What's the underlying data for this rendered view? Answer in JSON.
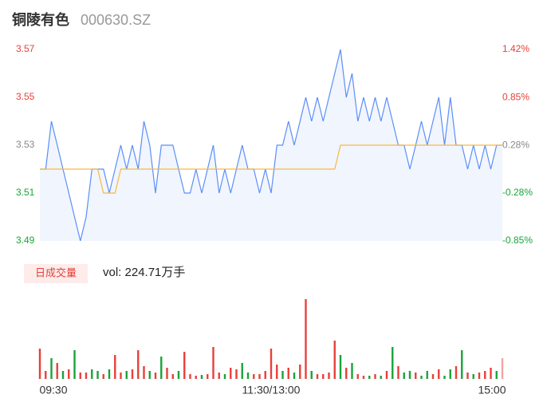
{
  "header": {
    "title": "铜陵有色",
    "code": "000630.SZ"
  },
  "chart_data": [
    {
      "type": "line",
      "x": [
        0,
        3,
        6,
        9,
        12,
        15,
        18,
        21,
        24,
        27,
        30,
        33,
        36,
        39,
        42,
        45,
        48,
        51,
        54,
        57,
        60,
        63,
        66,
        69,
        72,
        75,
        78,
        81,
        84,
        87,
        90,
        93,
        96,
        99,
        102,
        105,
        108,
        111,
        114,
        117,
        120,
        123,
        126,
        129,
        132,
        135,
        138,
        141,
        144,
        147,
        150,
        153,
        156,
        159,
        162,
        165,
        168,
        171,
        174,
        177,
        180,
        183,
        186,
        189,
        192,
        195,
        198,
        201,
        204,
        207,
        210,
        213,
        216,
        219,
        222,
        225,
        228,
        231,
        234,
        237,
        240
      ],
      "xlim": [
        0,
        240
      ],
      "ylim": [
        3.49,
        3.57
      ],
      "yticks": [
        3.49,
        3.51,
        3.53,
        3.55,
        3.57
      ],
      "ytick_colors": [
        "#1aa33a",
        "#1aa33a",
        "#888888",
        "#e8403a",
        "#e8403a"
      ],
      "y2lim": [
        -0.85,
        1.42
      ],
      "y2ticks": [
        {
          "value": -0.85,
          "label": "-0.85%"
        },
        {
          "value": -0.28,
          "label": "-0.28%"
        },
        {
          "value": 0.28,
          "label": "0.28%"
        },
        {
          "value": 0.85,
          "label": "0.85%"
        },
        {
          "value": 1.42,
          "label": "1.42%"
        }
      ],
      "y2tick_colors": [
        "#1aa33a",
        "#1aa33a",
        "#888888",
        "#e8403a",
        "#e8403a"
      ],
      "series": [
        {
          "color": "#5b8ff9",
          "fill": "#f1f5fd",
          "values": [
            3.52,
            3.52,
            3.54,
            3.53,
            3.52,
            3.51,
            3.5,
            3.49,
            3.5,
            3.52,
            3.52,
            3.52,
            3.51,
            3.52,
            3.53,
            3.52,
            3.53,
            3.52,
            3.54,
            3.53,
            3.51,
            3.53,
            3.53,
            3.53,
            3.52,
            3.51,
            3.51,
            3.52,
            3.51,
            3.52,
            3.53,
            3.51,
            3.52,
            3.51,
            3.52,
            3.53,
            3.52,
            3.52,
            3.51,
            3.52,
            3.51,
            3.53,
            3.53,
            3.54,
            3.53,
            3.54,
            3.55,
            3.54,
            3.55,
            3.54,
            3.55,
            3.56,
            3.57,
            3.55,
            3.56,
            3.54,
            3.55,
            3.54,
            3.55,
            3.54,
            3.55,
            3.54,
            3.53,
            3.53,
            3.52,
            3.53,
            3.54,
            3.53,
            3.54,
            3.55,
            3.53,
            3.55,
            3.53,
            3.53,
            3.52,
            3.53,
            3.52,
            3.53,
            3.52,
            3.53,
            3.53
          ]
        },
        {
          "color": "#f5b942",
          "values": [
            3.52,
            3.52,
            3.52,
            3.52,
            3.52,
            3.52,
            3.52,
            3.52,
            3.52,
            3.52,
            3.52,
            3.51,
            3.51,
            3.51,
            3.52,
            3.52,
            3.52,
            3.52,
            3.52,
            3.52,
            3.52,
            3.52,
            3.52,
            3.52,
            3.52,
            3.52,
            3.52,
            3.52,
            3.52,
            3.52,
            3.52,
            3.52,
            3.52,
            3.52,
            3.52,
            3.52,
            3.52,
            3.52,
            3.52,
            3.52,
            3.52,
            3.52,
            3.52,
            3.52,
            3.52,
            3.52,
            3.52,
            3.52,
            3.52,
            3.52,
            3.52,
            3.52,
            3.53,
            3.53,
            3.53,
            3.53,
            3.53,
            3.53,
            3.53,
            3.53,
            3.53,
            3.53,
            3.53,
            3.53,
            3.53,
            3.53,
            3.53,
            3.53,
            3.53,
            3.53,
            3.53,
            3.53,
            3.53,
            3.53,
            3.53,
            3.53,
            3.53,
            3.53,
            3.53,
            3.53,
            3.53
          ]
        }
      ]
    },
    {
      "type": "bar",
      "title": "日成交量",
      "subtitle": "vol: 224.71万手",
      "x": [
        0,
        3,
        6,
        9,
        12,
        15,
        18,
        21,
        24,
        27,
        30,
        33,
        36,
        39,
        42,
        45,
        48,
        51,
        54,
        57,
        60,
        63,
        66,
        69,
        72,
        75,
        78,
        81,
        84,
        87,
        90,
        93,
        96,
        99,
        102,
        105,
        108,
        111,
        114,
        117,
        120,
        123,
        126,
        129,
        132,
        135,
        138,
        141,
        144,
        147,
        150,
        153,
        156,
        159,
        162,
        165,
        168,
        171,
        174,
        177,
        180,
        183,
        186,
        189,
        192,
        195,
        198,
        201,
        204,
        207,
        210,
        213,
        216,
        219,
        222,
        225,
        228,
        231,
        234,
        237,
        240
      ],
      "xlim": [
        0,
        240
      ],
      "xticks": [
        {
          "value": 0,
          "label": "09:30"
        },
        {
          "value": 120,
          "label": "11:30/13:00"
        },
        {
          "value": 240,
          "label": "15:00"
        }
      ],
      "ylim": [
        0,
        105
      ],
      "values": [
        38,
        10,
        26,
        20,
        10,
        12,
        36,
        8,
        8,
        12,
        10,
        6,
        12,
        30,
        8,
        10,
        12,
        36,
        16,
        10,
        8,
        28,
        14,
        6,
        10,
        34,
        6,
        4,
        5,
        6,
        40,
        8,
        6,
        14,
        12,
        20,
        8,
        6,
        6,
        10,
        38,
        18,
        10,
        14,
        8,
        18,
        100,
        10,
        6,
        6,
        8,
        48,
        30,
        14,
        20,
        6,
        4,
        4,
        6,
        4,
        10,
        40,
        16,
        8,
        10,
        8,
        4,
        10,
        6,
        12,
        4,
        12,
        16,
        36,
        8,
        6,
        8,
        10,
        14,
        10,
        26
      ],
      "colors": [
        "#e8403a",
        "#e8403a",
        "#1aa33a",
        "#e8403a",
        "#1aa33a",
        "#e8403a",
        "#1aa33a",
        "#e8403a",
        "#e8403a",
        "#1aa33a",
        "#1aa33a",
        "#e8403a",
        "#1aa33a",
        "#e8403a",
        "#e8403a",
        "#1aa33a",
        "#e8403a",
        "#e8403a",
        "#e8403a",
        "#1aa33a",
        "#e8403a",
        "#1aa33a",
        "#e8403a",
        "#e8403a",
        "#1aa33a",
        "#e8403a",
        "#e8403a",
        "#e8403a",
        "#1aa33a",
        "#e8403a",
        "#e8403a",
        "#e8403a",
        "#1aa33a",
        "#e8403a",
        "#e8403a",
        "#1aa33a",
        "#1aa33a",
        "#e8403a",
        "#e8403a",
        "#e8403a",
        "#e8403a",
        "#e8403a",
        "#1aa33a",
        "#e8403a",
        "#1aa33a",
        "#e8403a",
        "#e8403a",
        "#1aa33a",
        "#e8403a",
        "#e8403a",
        "#e8403a",
        "#e8403a",
        "#1aa33a",
        "#e8403a",
        "#1aa33a",
        "#e8403a",
        "#e8403a",
        "#1aa33a",
        "#e8403a",
        "#1aa33a",
        "#e8403a",
        "#1aa33a",
        "#e8403a",
        "#1aa33a",
        "#1aa33a",
        "#e8403a",
        "#1aa33a",
        "#1aa33a",
        "#e8403a",
        "#e8403a",
        "#1aa33a",
        "#1aa33a",
        "#e8403a",
        "#1aa33a",
        "#e8403a",
        "#1aa33a",
        "#e8403a",
        "#e8403a",
        "#e8403a",
        "#1aa33a",
        "#f4a3a0"
      ]
    }
  ]
}
